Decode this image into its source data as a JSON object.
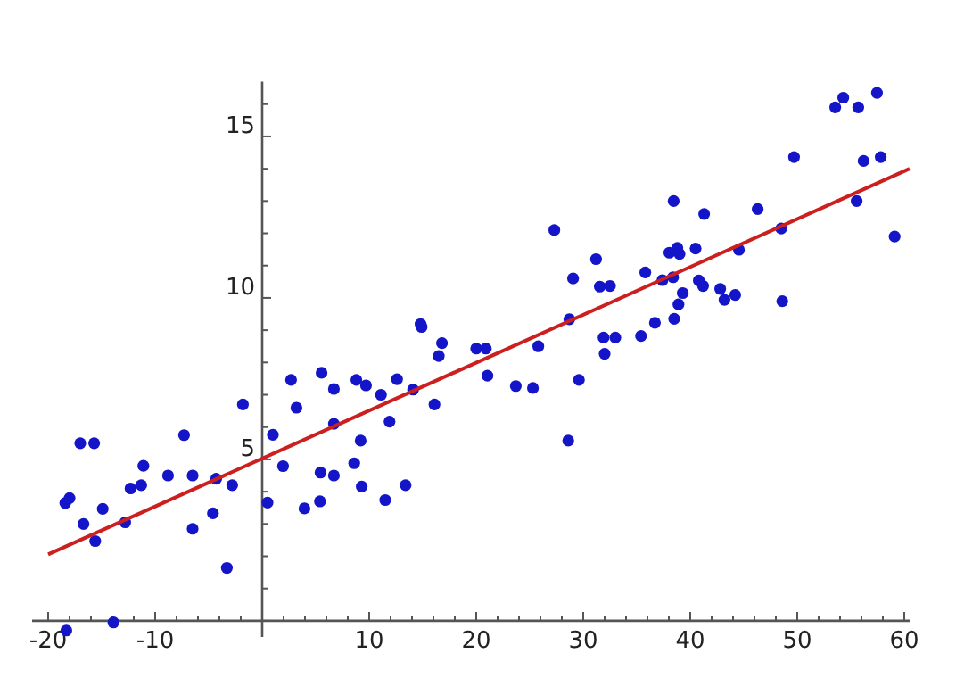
{
  "chart_data": {
    "type": "scatter",
    "xlim": [
      -21.5,
      60.5
    ],
    "ylim": [
      -0.5,
      16.7
    ],
    "xticks": [
      -20,
      {
        "value": -18,
        "label": null
      },
      {
        "value": -16,
        "label": null
      },
      {
        "value": -14,
        "label": null
      },
      {
        "value": -12,
        "label": null
      },
      -10,
      {
        "value": -8,
        "label": null
      },
      {
        "value": -6,
        "label": null
      },
      {
        "value": -4,
        "label": null
      },
      {
        "value": -2,
        "label": null
      },
      {
        "value": 0,
        "label": null
      },
      {
        "value": 2,
        "label": null
      },
      {
        "value": 4,
        "label": null
      },
      {
        "value": 6,
        "label": null
      },
      {
        "value": 8,
        "label": null
      },
      10,
      {
        "value": 12,
        "label": null
      },
      {
        "value": 14,
        "label": null
      },
      {
        "value": 16,
        "label": null
      },
      {
        "value": 18,
        "label": null
      },
      20,
      {
        "value": 22,
        "label": null
      },
      {
        "value": 24,
        "label": null
      },
      {
        "value": 26,
        "label": null
      },
      {
        "value": 28,
        "label": null
      },
      30,
      {
        "value": 32,
        "label": null
      },
      {
        "value": 34,
        "label": null
      },
      {
        "value": 36,
        "label": null
      },
      {
        "value": 38,
        "label": null
      },
      40,
      {
        "value": 42,
        "label": null
      },
      {
        "value": 44,
        "label": null
      },
      {
        "value": 46,
        "label": null
      },
      {
        "value": 48,
        "label": null
      },
      50,
      {
        "value": 52,
        "label": null
      },
      {
        "value": 54,
        "label": null
      },
      {
        "value": 56,
        "label": null
      },
      {
        "value": 58,
        "label": null
      },
      60
    ],
    "yticks": [
      {
        "value": 0,
        "label": null
      },
      {
        "value": 1,
        "label": null
      },
      {
        "value": 2,
        "label": null
      },
      {
        "value": 3,
        "label": null
      },
      {
        "value": 4,
        "label": null
      },
      5,
      {
        "value": 6,
        "label": null
      },
      {
        "value": 7,
        "label": null
      },
      {
        "value": 8,
        "label": null
      },
      {
        "value": 9,
        "label": null
      },
      10,
      {
        "value": 11,
        "label": null
      },
      {
        "value": 12,
        "label": null
      },
      {
        "value": 13,
        "label": null
      },
      {
        "value": 14,
        "label": null
      },
      15,
      {
        "value": 16,
        "label": null
      }
    ],
    "marker": "circle",
    "grid": false,
    "series": [
      {
        "color": "#1414c8",
        "x": [
          -18.4,
          -18,
          -17,
          -15.7,
          -16.7,
          -14.9,
          -15.6,
          -12.8,
          -12.3,
          -11.3,
          -11.1,
          -8.8,
          -7.3,
          -6.5,
          -6.5,
          -4.6,
          -4.3,
          -2.8,
          -3.3,
          -1.8,
          0.5,
          1,
          1.95,
          2.7,
          3.2,
          -18.3,
          -13.9,
          3.95,
          5.4,
          5.45,
          5.55,
          6.7,
          6.7,
          6.7,
          8.6,
          8.8,
          9.2,
          9.3,
          9.7,
          11.1,
          11.5,
          11.9,
          12.6,
          13.4,
          14.1,
          14.8,
          14.9,
          16.1,
          16.5,
          16.8,
          20,
          20.9,
          21.05,
          23.7,
          25.3,
          25.8,
          28.6,
          27.3,
          29.6,
          29.05,
          28.7,
          31.2,
          31.55,
          32.5,
          31.9,
          33,
          32,
          35.4,
          35.8,
          36.7,
          37.4,
          38.4,
          38.45,
          38.05,
          38.8,
          39,
          38.5,
          38.9,
          39.3,
          40.5,
          40.8,
          41.2,
          41.3,
          42.8,
          43.2,
          44.2,
          44.55,
          46.3,
          48.5,
          48.6,
          55.55,
          59.1,
          49.7,
          53.55,
          54.3,
          55.7,
          57.45,
          56.2,
          57.8
        ],
        "values": [
          3.65,
          3.8,
          5.5,
          5.5,
          3,
          3.47,
          2.47,
          3.05,
          4.1,
          4.2,
          4.8,
          4.5,
          5.75,
          4.5,
          2.85,
          3.33,
          4.4,
          4.2,
          1.64,
          6.7,
          3.66,
          5.76,
          4.79,
          7.46,
          6.6,
          -0.3,
          -0.05,
          3.48,
          3.7,
          4.59,
          7.68,
          4.5,
          7.18,
          6.1,
          4.88,
          7.46,
          5.58,
          4.16,
          7.29,
          7,
          3.74,
          6.17,
          7.48,
          4.2,
          7.16,
          9.19,
          9.1,
          6.7,
          8.2,
          8.6,
          8.43,
          8.43,
          7.59,
          7.27,
          7.21,
          8.5,
          5.58,
          12.1,
          7.46,
          10.6,
          9.34,
          11.2,
          10.35,
          10.37,
          8.77,
          8.77,
          8.27,
          8.82,
          10.79,
          9.23,
          10.55,
          10.64,
          13,
          11.4,
          11.55,
          11.36,
          9.35,
          9.8,
          10.15,
          11.53,
          10.54,
          10.37,
          12.6,
          10.28,
          9.94,
          10.09,
          11.49,
          12.75,
          12.15,
          9.9,
          13,
          11.9,
          14.36,
          15.9,
          16.2,
          15.9,
          16.35,
          14.24,
          14.36
        ]
      },
      {
        "type": "line",
        "color": "#cc2020",
        "marker": "none",
        "x": [
          -20,
          60.5
        ],
        "values": [
          2.06,
          14
        ]
      }
    ]
  }
}
